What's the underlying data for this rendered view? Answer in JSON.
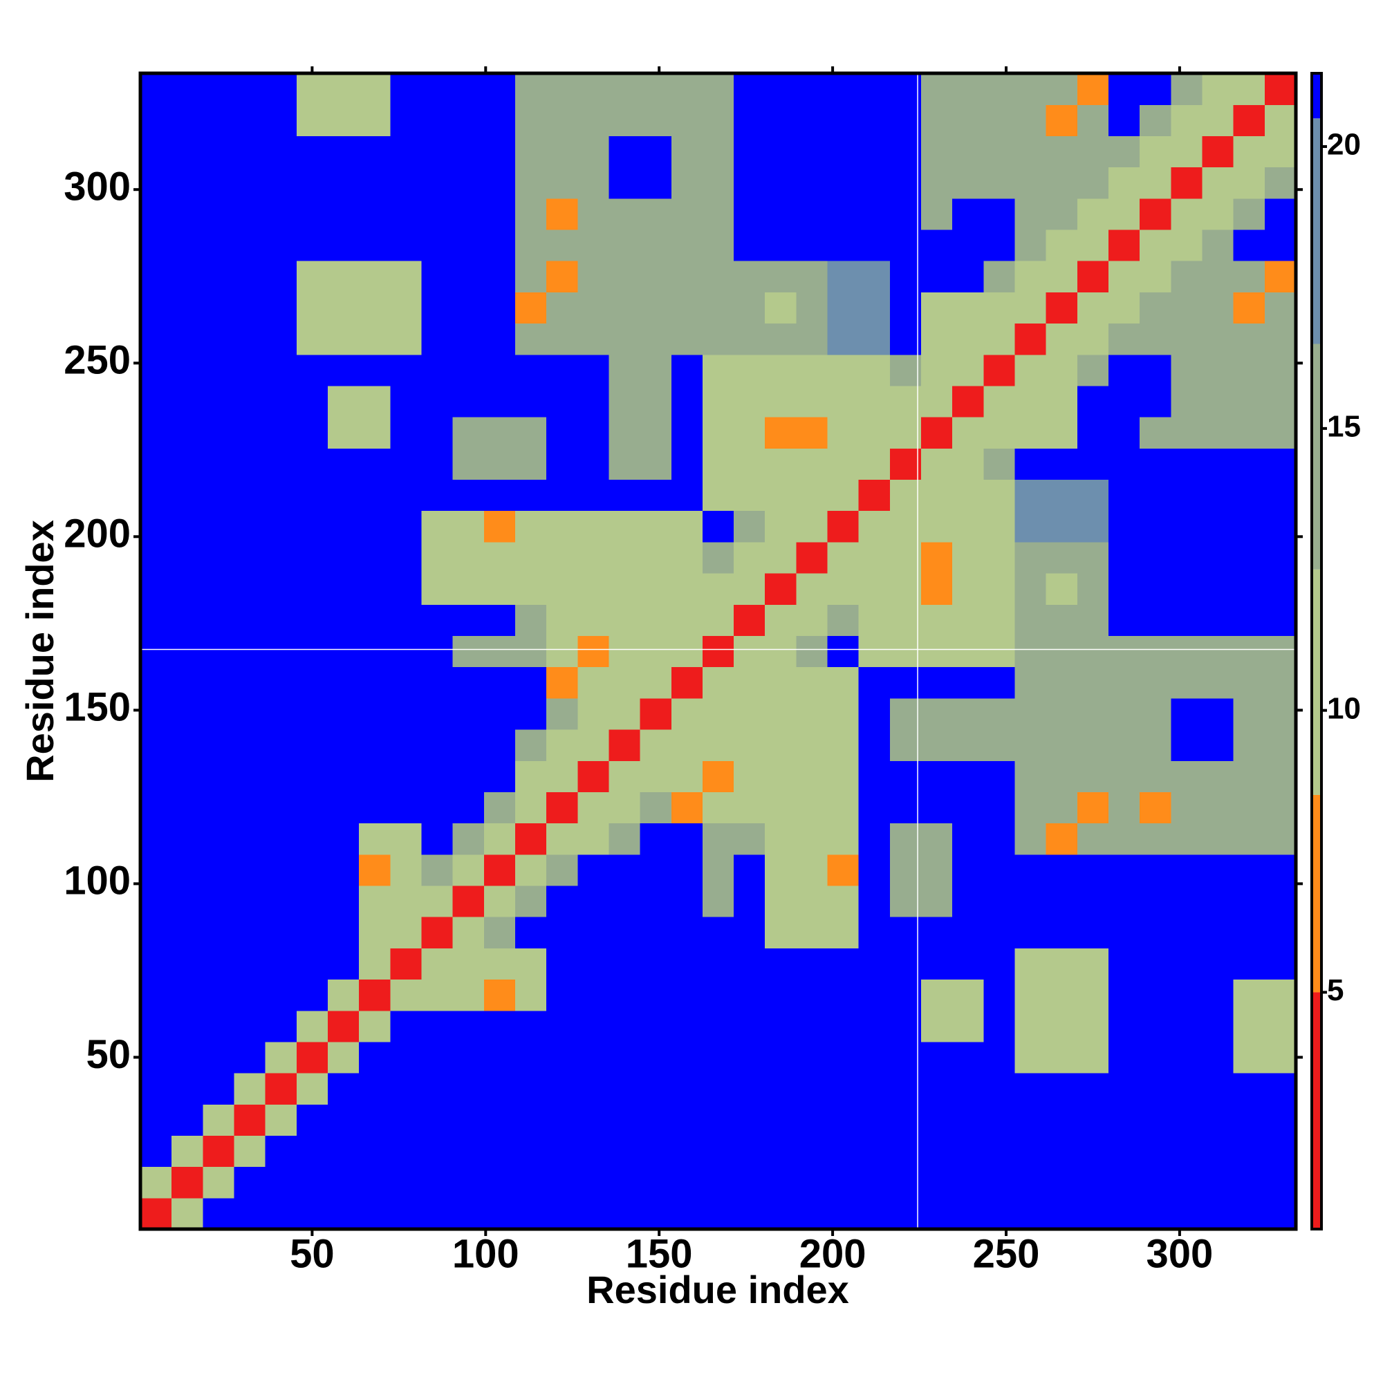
{
  "chart_data": {
    "type": "heatmap",
    "xlabel": "Residue index",
    "ylabel": "Residue index",
    "xlim": [
      0.5,
      333.5
    ],
    "ylim": [
      0.5,
      333.5
    ],
    "xticks": [
      50,
      100,
      150,
      200,
      250,
      300
    ],
    "yticks": [
      50,
      100,
      150,
      200,
      250,
      300
    ],
    "xlines": [
      224.5
    ],
    "ylines": [
      167.5
    ],
    "clim": [
      0.8,
      21.3
    ],
    "cticks": [
      5,
      10,
      15,
      20
    ],
    "colorscale": [
      {
        "max": 5,
        "color": "#ee1c1c"
      },
      {
        "max": 8.5,
        "color": "#ff8c1a"
      },
      {
        "max": 12.5,
        "color": "#b4c98c"
      },
      {
        "max": 16.5,
        "color": "#98ad8f"
      },
      {
        "max": 20.5,
        "color": "#6d8fae"
      },
      {
        "max": 21.3,
        "color": "#0000ff"
      }
    ],
    "x": [
      5,
      14,
      23,
      32,
      41,
      50,
      59,
      68,
      77,
      86,
      95,
      104,
      113,
      122,
      131,
      140,
      149,
      158,
      167,
      176,
      185,
      194,
      203,
      212,
      221,
      230,
      239,
      248,
      257,
      266,
      275,
      284,
      293,
      302,
      311,
      320,
      329
    ],
    "y": [
      5,
      14,
      23,
      32,
      41,
      50,
      59,
      68,
      77,
      86,
      95,
      104,
      113,
      122,
      131,
      140,
      149,
      158,
      167,
      176,
      185,
      194,
      203,
      212,
      221,
      230,
      239,
      248,
      257,
      266,
      275,
      284,
      293,
      302,
      311,
      320,
      329
    ],
    "z": [
      [
        4,
        11,
        21,
        21,
        21,
        21,
        21,
        21,
        21,
        21,
        21,
        21,
        21,
        21,
        21,
        21,
        21,
        21,
        21,
        21,
        21,
        21,
        21,
        21,
        21,
        21,
        21,
        21,
        21,
        21,
        21,
        21,
        21,
        21,
        21,
        21,
        21
      ],
      [
        11,
        4,
        11,
        21,
        21,
        21,
        21,
        21,
        21,
        21,
        21,
        21,
        21,
        21,
        21,
        21,
        21,
        21,
        21,
        21,
        21,
        21,
        21,
        21,
        21,
        21,
        21,
        21,
        21,
        21,
        21,
        21,
        21,
        21,
        21,
        21,
        21
      ],
      [
        21,
        11,
        4,
        11,
        21,
        21,
        21,
        21,
        21,
        21,
        21,
        21,
        21,
        21,
        21,
        21,
        21,
        21,
        21,
        21,
        21,
        21,
        21,
        21,
        21,
        21,
        21,
        21,
        21,
        21,
        21,
        21,
        21,
        21,
        21,
        21,
        21
      ],
      [
        21,
        21,
        11,
        4,
        11,
        21,
        21,
        21,
        21,
        21,
        21,
        21,
        21,
        21,
        21,
        21,
        21,
        21,
        21,
        21,
        21,
        21,
        21,
        21,
        21,
        21,
        21,
        21,
        21,
        21,
        21,
        21,
        21,
        21,
        21,
        21,
        21
      ],
      [
        21,
        21,
        21,
        11,
        4,
        11,
        21,
        21,
        21,
        21,
        21,
        21,
        21,
        21,
        21,
        21,
        21,
        21,
        21,
        21,
        21,
        21,
        21,
        21,
        21,
        21,
        21,
        21,
        21,
        21,
        21,
        21,
        21,
        21,
        21,
        21,
        21
      ],
      [
        21,
        21,
        21,
        21,
        11,
        4,
        11,
        21,
        21,
        21,
        21,
        21,
        21,
        21,
        21,
        21,
        21,
        21,
        21,
        21,
        21,
        21,
        21,
        21,
        21,
        21,
        21,
        21,
        12,
        12,
        12,
        21,
        21,
        21,
        21,
        12,
        12
      ],
      [
        21,
        21,
        21,
        21,
        21,
        11,
        4,
        11,
        21,
        21,
        21,
        21,
        21,
        21,
        21,
        21,
        21,
        21,
        21,
        21,
        21,
        21,
        21,
        21,
        21,
        12,
        12,
        21,
        12,
        12,
        12,
        21,
        21,
        21,
        21,
        12,
        12
      ],
      [
        21,
        21,
        21,
        21,
        21,
        21,
        11,
        4,
        11,
        11,
        11,
        8,
        11,
        21,
        21,
        21,
        21,
        21,
        21,
        21,
        21,
        21,
        21,
        21,
        21,
        12,
        12,
        21,
        12,
        12,
        12,
        21,
        21,
        21,
        21,
        12,
        12
      ],
      [
        21,
        21,
        21,
        21,
        21,
        21,
        21,
        11,
        4,
        11,
        11,
        11,
        11,
        21,
        21,
        21,
        21,
        21,
        21,
        21,
        21,
        21,
        21,
        21,
        21,
        21,
        21,
        21,
        12,
        12,
        12,
        21,
        21,
        21,
        21,
        21,
        21
      ],
      [
        21,
        21,
        21,
        21,
        21,
        21,
        21,
        11,
        11,
        4,
        10,
        13,
        21,
        21,
        21,
        21,
        21,
        21,
        21,
        21,
        11,
        11,
        11,
        21,
        21,
        21,
        21,
        21,
        21,
        21,
        21,
        21,
        21,
        21,
        21,
        21,
        21
      ],
      [
        21,
        21,
        21,
        21,
        21,
        21,
        21,
        11,
        11,
        10,
        4,
        10,
        13,
        21,
        21,
        21,
        21,
        21,
        16,
        21,
        11,
        11,
        11,
        21,
        13,
        13,
        21,
        21,
        21,
        21,
        21,
        21,
        21,
        21,
        21,
        21,
        21
      ],
      [
        21,
        21,
        21,
        21,
        21,
        21,
        21,
        8,
        11,
        13,
        10,
        4,
        10,
        13,
        21,
        21,
        21,
        21,
        16,
        21,
        11,
        11,
        7,
        21,
        13,
        13,
        21,
        21,
        21,
        21,
        21,
        21,
        21,
        21,
        21,
        21,
        21
      ],
      [
        21,
        21,
        21,
        21,
        21,
        21,
        21,
        11,
        11,
        21,
        13,
        10,
        4,
        10,
        12,
        15,
        21,
        21,
        16,
        13,
        11,
        11,
        11,
        21,
        13,
        13,
        21,
        21,
        13,
        7,
        13,
        13,
        13,
        13,
        13,
        13,
        13
      ],
      [
        21,
        21,
        21,
        21,
        21,
        21,
        21,
        21,
        21,
        21,
        21,
        13,
        10,
        4,
        10,
        12,
        15,
        7,
        11,
        11,
        11,
        11,
        11,
        21,
        21,
        21,
        21,
        21,
        13,
        13,
        7,
        13,
        8,
        13,
        13,
        13,
        13
      ],
      [
        21,
        21,
        21,
        21,
        21,
        21,
        21,
        21,
        21,
        21,
        21,
        21,
        12,
        10,
        4,
        10,
        12,
        11,
        7,
        11,
        11,
        11,
        11,
        21,
        21,
        21,
        21,
        21,
        13,
        13,
        13,
        13,
        13,
        13,
        13,
        13,
        13
      ],
      [
        21,
        21,
        21,
        21,
        21,
        21,
        21,
        21,
        21,
        21,
        21,
        21,
        15,
        12,
        10,
        4,
        10,
        12,
        11,
        11,
        11,
        11,
        11,
        21,
        15,
        15,
        15,
        15,
        13,
        13,
        13,
        13,
        13,
        21,
        21,
        13,
        13
      ],
      [
        21,
        21,
        21,
        21,
        21,
        21,
        21,
        21,
        21,
        21,
        21,
        21,
        21,
        15,
        12,
        10,
        4,
        10,
        12,
        11,
        11,
        11,
        11,
        21,
        15,
        15,
        15,
        15,
        13,
        13,
        13,
        13,
        13,
        21,
        21,
        13,
        13
      ],
      [
        21,
        21,
        21,
        21,
        21,
        21,
        21,
        21,
        21,
        21,
        21,
        21,
        21,
        7,
        11,
        12,
        10,
        4,
        10,
        12,
        11,
        11,
        11,
        21,
        21,
        21,
        21,
        21,
        13,
        13,
        13,
        13,
        13,
        13,
        13,
        13,
        13
      ],
      [
        21,
        21,
        21,
        21,
        21,
        21,
        21,
        21,
        21,
        21,
        16,
        16,
        16,
        11,
        7,
        11,
        12,
        10,
        4,
        10,
        12,
        15,
        21,
        12,
        12,
        12,
        12,
        12,
        13,
        13,
        13,
        13,
        13,
        13,
        13,
        13,
        13
      ],
      [
        21,
        21,
        21,
        21,
        21,
        21,
        21,
        21,
        21,
        21,
        21,
        21,
        13,
        11,
        11,
        11,
        11,
        12,
        10,
        4,
        10,
        12,
        15,
        12,
        12,
        12,
        12,
        12,
        13,
        13,
        13,
        21,
        21,
        21,
        21,
        21,
        21
      ],
      [
        21,
        21,
        21,
        21,
        21,
        21,
        21,
        21,
        21,
        11,
        11,
        11,
        11,
        11,
        11,
        11,
        11,
        11,
        12,
        10,
        4,
        10,
        12,
        12,
        12,
        7,
        12,
        12,
        13,
        9,
        13,
        21,
        21,
        21,
        21,
        21,
        21
      ],
      [
        21,
        21,
        21,
        21,
        21,
        21,
        21,
        21,
        21,
        11,
        11,
        11,
        11,
        11,
        11,
        11,
        11,
        11,
        15,
        12,
        10,
        4,
        10,
        12,
        12,
        8,
        12,
        12,
        13,
        13,
        13,
        21,
        21,
        21,
        21,
        21,
        21
      ],
      [
        21,
        21,
        21,
        21,
        21,
        21,
        21,
        21,
        21,
        11,
        11,
        7,
        11,
        11,
        11,
        11,
        11,
        11,
        21,
        15,
        12,
        10,
        4,
        10,
        12,
        12,
        12,
        12,
        17,
        17,
        17,
        21,
        21,
        21,
        21,
        21,
        21
      ],
      [
        21,
        21,
        21,
        21,
        21,
        21,
        21,
        21,
        21,
        21,
        21,
        21,
        21,
        21,
        21,
        21,
        21,
        21,
        12,
        12,
        12,
        12,
        10,
        4,
        10,
        12,
        12,
        12,
        17,
        17,
        17,
        21,
        21,
        21,
        21,
        21,
        21
      ],
      [
        21,
        21,
        21,
        21,
        21,
        21,
        21,
        21,
        21,
        21,
        13,
        13,
        13,
        21,
        21,
        15,
        15,
        21,
        12,
        12,
        12,
        12,
        12,
        10,
        4,
        10,
        12,
        14,
        21,
        21,
        21,
        21,
        21,
        21,
        21,
        21,
        21
      ],
      [
        21,
        21,
        21,
        21,
        21,
        21,
        12,
        12,
        21,
        21,
        13,
        13,
        13,
        21,
        21,
        15,
        15,
        21,
        12,
        12,
        7,
        8,
        12,
        12,
        10,
        4,
        10,
        12,
        11,
        11,
        21,
        21,
        13,
        13,
        13,
        13,
        13
      ],
      [
        21,
        21,
        21,
        21,
        21,
        21,
        12,
        12,
        21,
        21,
        21,
        21,
        21,
        21,
        21,
        15,
        15,
        21,
        12,
        12,
        12,
        12,
        12,
        12,
        12,
        10,
        4,
        10,
        11,
        11,
        21,
        21,
        21,
        13,
        13,
        13,
        13
      ],
      [
        21,
        21,
        21,
        21,
        21,
        21,
        21,
        21,
        21,
        21,
        21,
        21,
        21,
        21,
        21,
        15,
        15,
        21,
        12,
        12,
        12,
        12,
        12,
        12,
        14,
        12,
        10,
        4,
        10,
        12,
        14,
        21,
        21,
        13,
        13,
        13,
        13
      ],
      [
        21,
        21,
        21,
        21,
        21,
        12,
        12,
        12,
        12,
        21,
        21,
        21,
        13,
        13,
        13,
        13,
        13,
        13,
        13,
        13,
        13,
        13,
        17,
        17,
        21,
        11,
        11,
        10,
        4,
        10,
        12,
        14,
        13,
        13,
        13,
        13,
        13
      ],
      [
        21,
        21,
        21,
        21,
        21,
        12,
        12,
        12,
        12,
        21,
        21,
        21,
        7,
        13,
        13,
        13,
        13,
        13,
        13,
        13,
        9,
        13,
        17,
        17,
        21,
        11,
        11,
        12,
        10,
        4,
        10,
        12,
        13,
        13,
        13,
        8,
        13
      ],
      [
        21,
        21,
        21,
        21,
        21,
        12,
        12,
        12,
        12,
        21,
        21,
        21,
        13,
        7,
        13,
        13,
        13,
        13,
        13,
        13,
        13,
        13,
        17,
        17,
        21,
        21,
        21,
        14,
        12,
        10,
        4,
        10,
        12,
        13,
        13,
        13,
        7
      ],
      [
        21,
        21,
        21,
        21,
        21,
        21,
        21,
        21,
        21,
        21,
        21,
        21,
        13,
        13,
        13,
        13,
        13,
        13,
        13,
        21,
        21,
        21,
        21,
        21,
        21,
        21,
        21,
        21,
        14,
        12,
        10,
        4,
        10,
        12,
        14,
        21,
        21
      ],
      [
        21,
        21,
        21,
        21,
        21,
        21,
        21,
        21,
        21,
        21,
        21,
        21,
        13,
        8,
        13,
        13,
        13,
        13,
        13,
        21,
        21,
        21,
        21,
        21,
        21,
        13,
        21,
        21,
        13,
        13,
        12,
        10,
        4,
        10,
        12,
        14,
        21
      ],
      [
        21,
        21,
        21,
        21,
        21,
        21,
        21,
        21,
        21,
        21,
        21,
        21,
        13,
        13,
        13,
        21,
        21,
        13,
        13,
        21,
        21,
        21,
        21,
        21,
        21,
        13,
        13,
        13,
        13,
        13,
        13,
        12,
        10,
        4,
        10,
        12,
        14
      ],
      [
        21,
        21,
        21,
        21,
        21,
        21,
        21,
        21,
        21,
        21,
        21,
        21,
        13,
        13,
        13,
        21,
        21,
        13,
        13,
        21,
        21,
        21,
        21,
        21,
        21,
        13,
        13,
        13,
        13,
        13,
        13,
        14,
        12,
        10,
        4,
        10,
        12
      ],
      [
        21,
        21,
        21,
        21,
        21,
        12,
        12,
        12,
        21,
        21,
        21,
        21,
        13,
        13,
        13,
        13,
        13,
        13,
        13,
        21,
        21,
        21,
        21,
        21,
        21,
        13,
        13,
        13,
        13,
        8,
        13,
        21,
        14,
        12,
        10,
        4,
        10
      ],
      [
        21,
        21,
        21,
        21,
        21,
        12,
        12,
        12,
        21,
        21,
        21,
        21,
        13,
        13,
        13,
        13,
        13,
        13,
        13,
        21,
        21,
        21,
        21,
        21,
        21,
        13,
        13,
        13,
        13,
        13,
        7,
        21,
        21,
        14,
        12,
        10,
        4
      ]
    ]
  }
}
